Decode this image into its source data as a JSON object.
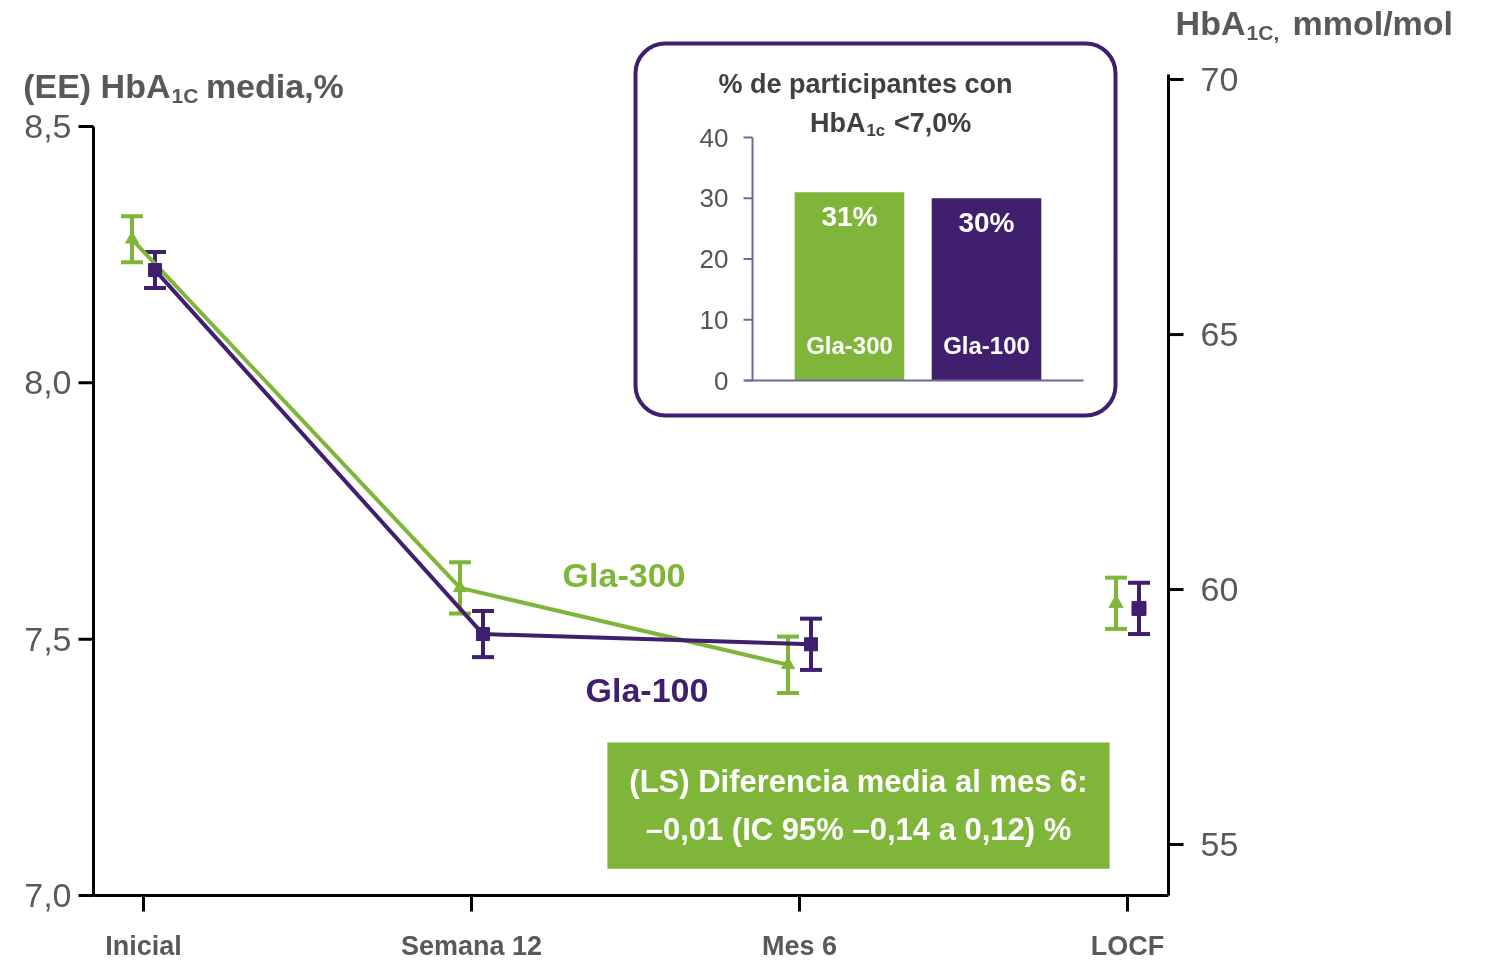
{
  "chart_data": [
    {
      "type": "line",
      "categories": [
        "Inicial",
        "Semana 12",
        "Mes 6",
        "LOCF"
      ],
      "ylabel": "(EE) HbA$_{1C}$ media,%",
      "y2label": "HbA$_{1C,}$ mmol/mol",
      "ylim": [
        7.0,
        8.5
      ],
      "yticks": [
        {
          "value": 7.0,
          "label": "7,0"
        },
        {
          "value": 7.5,
          "label": "7,5"
        },
        {
          "value": 8.0,
          "label": "8,0"
        },
        {
          "value": 8.5,
          "label": "8,5"
        }
      ],
      "y2lim": [
        54.0,
        70.1
      ],
      "y2ticks": [
        55,
        60,
        65,
        70
      ],
      "series": [
        {
          "name": "Gla-300",
          "color": "#7fb539",
          "marker": "triangle",
          "values": [
            8.28,
            7.6,
            7.45,
            null
          ],
          "errors": [
            0.045,
            0.05,
            0.055,
            null
          ]
        },
        {
          "name": "Gla-100",
          "color": "#3f1f6e",
          "marker": "square",
          "values": [
            8.22,
            7.51,
            7.49,
            null
          ],
          "errors": [
            0.035,
            0.045,
            0.05,
            null
          ]
        },
        {
          "type": "scatter",
          "color": "#7fb539",
          "marker": "triangle",
          "values": [
            null,
            null,
            null,
            7.57
          ],
          "errors": [
            null,
            null,
            null,
            0.05
          ]
        },
        {
          "type": "scatter",
          "color": "#3f1f6e",
          "marker": "square",
          "values": [
            null,
            null,
            null,
            7.56
          ],
          "errors": [
            null,
            null,
            null,
            0.05
          ]
        }
      ],
      "annotations": [
        "(LS) Diferencia media al mes 6:\n–0,01 (IC 95% –0,14 a 0,12) %"
      ],
      "grid": false
    },
    {
      "type": "bar",
      "title": "% de participantes con\nHbA$_{1c}$ <7,0%",
      "categories": [
        "Gla-300",
        "Gla-100"
      ],
      "values": [
        31,
        30
      ],
      "colors": [
        "#7fb539",
        "#3f1f6e"
      ],
      "value_labels": [
        "31%",
        "30%"
      ],
      "ylim": [
        0,
        40
      ],
      "yticks": [
        0,
        10,
        20,
        30,
        40
      ]
    }
  ]
}
